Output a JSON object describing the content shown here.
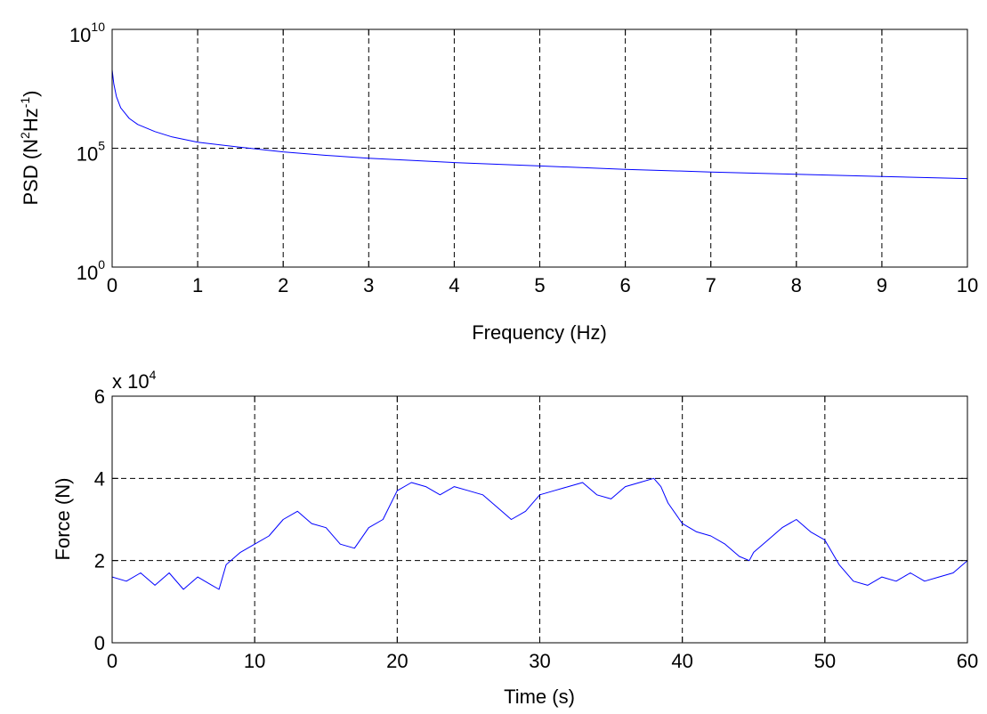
{
  "chart_data": [
    {
      "type": "line",
      "xlabel": "Frequency (Hz)",
      "ylabel": {
        "prefix": "PSD (N",
        "sup1": "2",
        "mid": "Hz",
        "sup2": "-1",
        "suffix": ")"
      },
      "xlim": [
        0,
        10
      ],
      "ylim": [
        1,
        10000000000
      ],
      "yscale": "log",
      "grid": true,
      "xticks": [
        "0",
        "1",
        "2",
        "3",
        "4",
        "5",
        "6",
        "7",
        "8",
        "9",
        "10"
      ],
      "yticks": [
        {
          "base": "10",
          "exp": "0"
        },
        {
          "base": "10",
          "exp": "5"
        },
        {
          "base": "10",
          "exp": "10"
        }
      ],
      "series": [
        {
          "color": "#0000ff",
          "x": [
            0,
            0.02,
            0.05,
            0.1,
            0.2,
            0.3,
            0.5,
            0.7,
            1,
            1.5,
            2,
            2.5,
            3,
            4,
            5,
            6,
            7,
            8,
            9,
            10
          ],
          "y": [
            200000000,
            50000000,
            15000000,
            5000000,
            1800000,
            1000000,
            500000,
            300000,
            180000,
            110000,
            70000,
            50000,
            38000,
            25000,
            18000,
            13000,
            10000,
            8000,
            6500,
            5300
          ]
        }
      ]
    },
    {
      "type": "line",
      "xlabel": "Time (s)",
      "ylabel": "Force (N)",
      "multiplier": {
        "text": "x 10",
        "exp": "4"
      },
      "xlim": [
        0,
        60
      ],
      "ylim": [
        0,
        6
      ],
      "grid": true,
      "xticks": [
        "0",
        "10",
        "20",
        "30",
        "40",
        "50",
        "60"
      ],
      "yticks": [
        "0",
        "2",
        "4",
        "6"
      ],
      "series": [
        {
          "color": "#0000ff",
          "x": [
            0,
            1,
            2,
            3,
            4,
            5,
            6,
            7,
            7.5,
            8,
            9,
            10,
            11,
            12,
            13,
            14,
            15,
            16,
            17,
            18,
            19,
            20,
            21,
            22,
            23,
            24,
            25,
            26,
            27,
            28,
            29,
            30,
            31,
            32,
            33,
            34,
            35,
            36,
            37,
            38,
            38.5,
            39,
            40,
            41,
            42,
            43,
            44,
            44.7,
            45,
            46,
            47,
            48,
            49,
            50,
            51,
            52,
            53,
            54,
            55,
            56,
            57,
            58,
            59,
            60
          ],
          "y": [
            1.6,
            1.5,
            1.7,
            1.4,
            1.7,
            1.3,
            1.6,
            1.4,
            1.3,
            1.9,
            2.2,
            2.4,
            2.6,
            3.0,
            3.2,
            2.9,
            2.8,
            2.4,
            2.3,
            2.8,
            3.0,
            3.7,
            3.9,
            3.8,
            3.6,
            3.8,
            3.7,
            3.6,
            3.3,
            3.0,
            3.2,
            3.6,
            3.7,
            3.8,
            3.9,
            3.6,
            3.5,
            3.8,
            3.9,
            4.0,
            3.8,
            3.4,
            2.9,
            2.7,
            2.6,
            2.4,
            2.1,
            2.0,
            2.2,
            2.5,
            2.8,
            3.0,
            2.7,
            2.5,
            1.9,
            1.5,
            1.4,
            1.6,
            1.5,
            1.7,
            1.5,
            1.6,
            1.7,
            2.0
          ]
        }
      ]
    }
  ]
}
